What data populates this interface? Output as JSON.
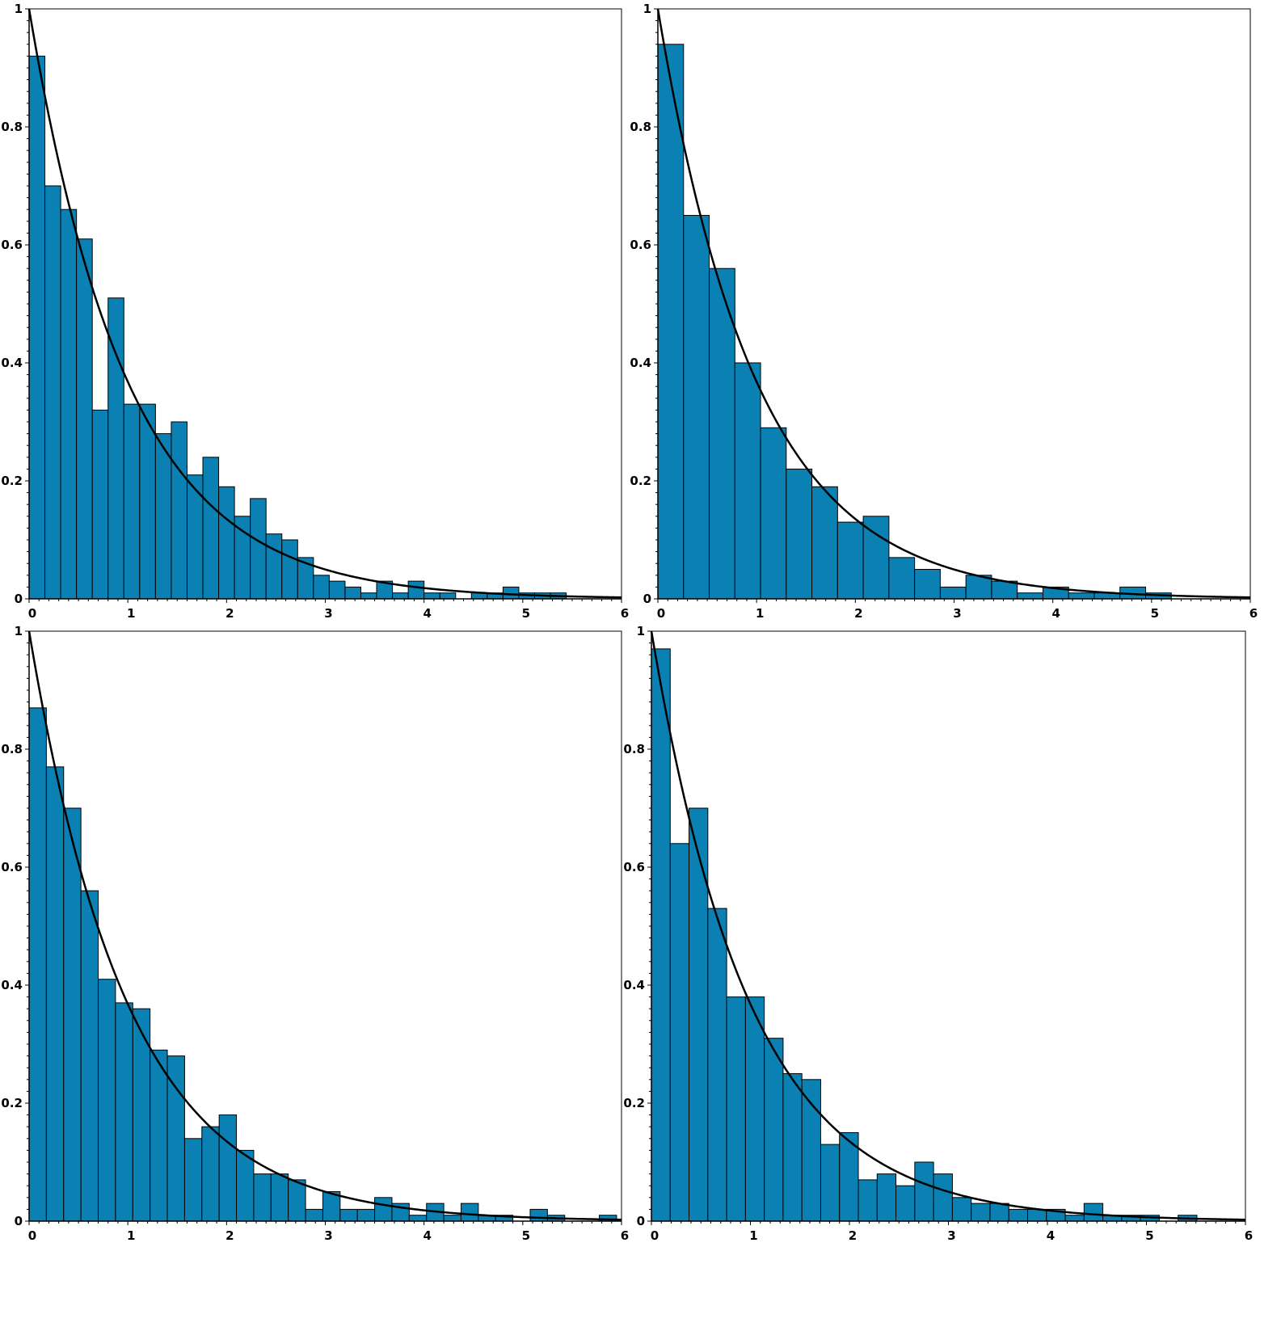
{
  "chart_data": [
    {
      "type": "bar",
      "xlim": [
        0,
        6
      ],
      "ylim": [
        0,
        1
      ],
      "x_ticks": [
        "0",
        "1",
        "2",
        "3",
        "4",
        "5",
        "6"
      ],
      "y_ticks": [
        "0",
        "0.2",
        "0.4",
        "0.6",
        "0.8",
        "1"
      ],
      "bin_width": 0.16,
      "bins_start": 0,
      "values": [
        0.92,
        0.7,
        0.66,
        0.61,
        0.32,
        0.51,
        0.33,
        0.33,
        0.28,
        0.3,
        0.21,
        0.24,
        0.19,
        0.14,
        0.17,
        0.11,
        0.1,
        0.07,
        0.04,
        0.03,
        0.02,
        0.01,
        0.03,
        0.01,
        0.03,
        0.01,
        0.01,
        0.0,
        0.01,
        0.01,
        0.02,
        0.01,
        0.01,
        0.01
      ],
      "curve": {
        "label": "",
        "formula": "exp(-x)"
      },
      "bar_color": "#0a80b3",
      "curve_color": "#000000",
      "grid": false
    },
    {
      "type": "bar",
      "xlim": [
        0,
        6
      ],
      "ylim": [
        0,
        1
      ],
      "x_ticks": [
        "0",
        "1",
        "2",
        "3",
        "4",
        "5",
        "6"
      ],
      "y_ticks": [
        "0",
        "0.2",
        "0.4",
        "0.6",
        "0.8",
        "1"
      ],
      "bin_width": 0.26,
      "bins_start": 0,
      "values": [
        0.94,
        0.65,
        0.56,
        0.4,
        0.29,
        0.22,
        0.19,
        0.13,
        0.14,
        0.07,
        0.05,
        0.02,
        0.04,
        0.03,
        0.01,
        0.02,
        0.01,
        0.01,
        0.02,
        0.01,
        0.0,
        0.0,
        0.0
      ],
      "curve": {
        "label": "",
        "formula": "exp(-x)"
      },
      "bar_color": "#0a80b3",
      "curve_color": "#000000",
      "grid": false
    },
    {
      "type": "bar",
      "xlim": [
        0,
        6
      ],
      "ylim": [
        0,
        1
      ],
      "x_ticks": [
        "0",
        "1",
        "2",
        "3",
        "4",
        "5",
        "6"
      ],
      "y_ticks": [
        "0",
        "0.2",
        "0.4",
        "0.6",
        "0.8",
        "1"
      ],
      "bin_width": 0.175,
      "bins_start": 0,
      "values": [
        0.87,
        0.77,
        0.7,
        0.56,
        0.41,
        0.37,
        0.36,
        0.29,
        0.28,
        0.14,
        0.16,
        0.18,
        0.12,
        0.08,
        0.08,
        0.07,
        0.02,
        0.05,
        0.02,
        0.02,
        0.04,
        0.03,
        0.01,
        0.03,
        0.01,
        0.03,
        0.01,
        0.01,
        0.0,
        0.02,
        0.01,
        0.0,
        0.0,
        0.01
      ],
      "curve": {
        "label": "",
        "formula": "exp(-x)"
      },
      "bar_color": "#0a80b3",
      "curve_color": "#000000",
      "grid": false
    },
    {
      "type": "bar",
      "xlim": [
        0,
        6
      ],
      "ylim": [
        0,
        1
      ],
      "x_ticks": [
        "0",
        "1",
        "2",
        "3",
        "4",
        "5",
        "6"
      ],
      "y_ticks": [
        "0",
        "0.2",
        "0.4",
        "0.6",
        "0.8",
        "1"
      ],
      "bin_width": 0.19,
      "bins_start": 0,
      "values": [
        0.97,
        0.64,
        0.7,
        0.53,
        0.38,
        0.38,
        0.31,
        0.25,
        0.24,
        0.13,
        0.15,
        0.07,
        0.08,
        0.06,
        0.1,
        0.08,
        0.04,
        0.03,
        0.03,
        0.02,
        0.02,
        0.02,
        0.01,
        0.03,
        0.01,
        0.01,
        0.01,
        0.0,
        0.01,
        0.0,
        0.0,
        0.0
      ],
      "curve": {
        "label": "",
        "formula": "exp(-x)"
      },
      "bar_color": "#0a80b3",
      "curve_color": "#000000",
      "grid": false
    }
  ]
}
